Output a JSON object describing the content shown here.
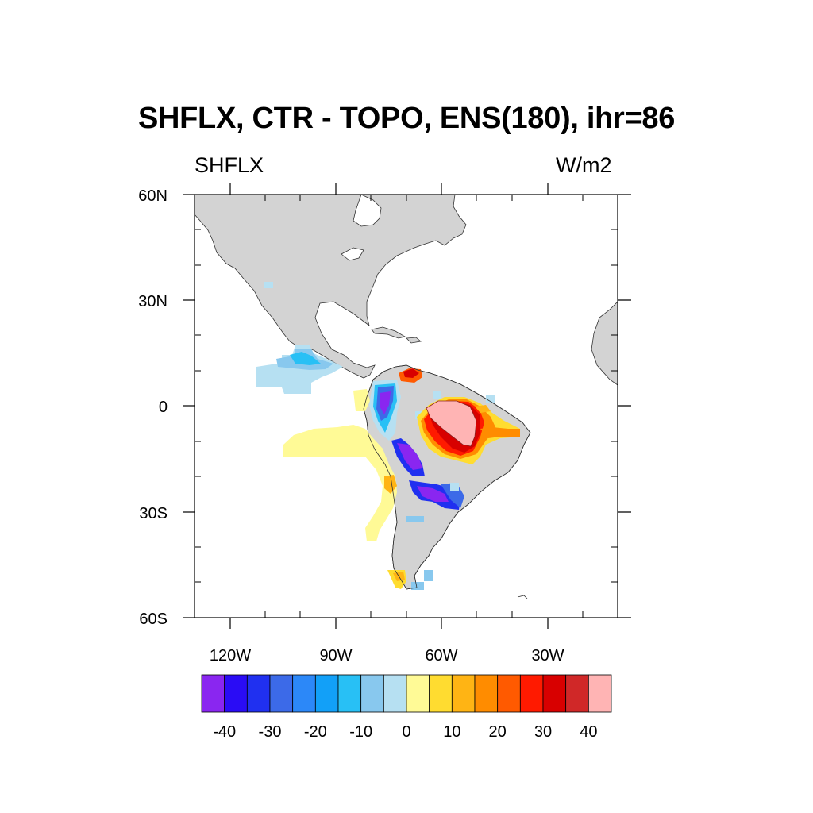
{
  "title": "SHFLX, CTR - TOPO, ENS(180), ihr=86",
  "subtitle_left": "SHFLX",
  "subtitle_right": "W/m2",
  "map": {
    "lon_range": [
      -130,
      -5
    ],
    "lat_range": [
      -60,
      60
    ],
    "land_color": "#d3d3d3",
    "ocean_color": "#ffffff",
    "lat_labels": [
      "60N",
      "30N",
      "0",
      "30S",
      "60S"
    ],
    "lon_labels": [
      "120W",
      "90W",
      "60W",
      "30W"
    ]
  },
  "colorbar": {
    "colors": [
      "#8a26f0",
      "#2a0cf5",
      "#2030f0",
      "#3c6ae8",
      "#2c88f8",
      "#12a0f8",
      "#28c0f5",
      "#88c8ee",
      "#b6e0f2",
      "#fffa96",
      "#ffdc30",
      "#ffb414",
      "#ff8c00",
      "#ff5a00",
      "#ff1a00",
      "#d80000",
      "#d02828",
      "#ffb4b4"
    ],
    "labels": [
      "-40",
      "-30",
      "-20",
      "-10",
      "0",
      "10",
      "20",
      "30",
      "40"
    ]
  },
  "chart_data": {
    "type": "heatmap",
    "variable": "SHFLX",
    "units": "W/m2",
    "levels": [
      -45,
      -40,
      -35,
      -30,
      -25,
      -20,
      -15,
      -10,
      -5,
      0,
      5,
      10,
      15,
      20,
      25,
      30,
      35,
      40,
      45
    ],
    "regions": [
      {
        "lon": [
          -110,
          -90
        ],
        "lat": [
          3,
          17
        ],
        "value": -5
      },
      {
        "lon": [
          -103,
          -93
        ],
        "lat": [
          11,
          17
        ],
        "value": -15
      },
      {
        "lon": [
          -80,
          -75
        ],
        "lat": [
          -7,
          6
        ],
        "value": -42
      },
      {
        "lon": [
          -71,
          -65
        ],
        "lat": [
          -22,
          -10
        ],
        "value": -42
      },
      {
        "lon": [
          -69,
          -60
        ],
        "lat": [
          -31,
          -22
        ],
        "value": -32
      },
      {
        "lon": [
          -90,
          -72
        ],
        "lat": [
          -45,
          -6
        ],
        "value": 3
      },
      {
        "lon": [
          -56,
          -47
        ],
        "lat": [
          -4,
          3
        ],
        "value": 48
      },
      {
        "lon": [
          -59,
          -45
        ],
        "lat": [
          -15,
          4
        ],
        "value": 30
      },
      {
        "lon": [
          -73,
          -69
        ],
        "lat": [
          6,
          11
        ],
        "value": 28
      },
      {
        "lon": [
          -77,
          -70
        ],
        "lat": [
          -54,
          -49
        ],
        "value": 12
      }
    ]
  }
}
